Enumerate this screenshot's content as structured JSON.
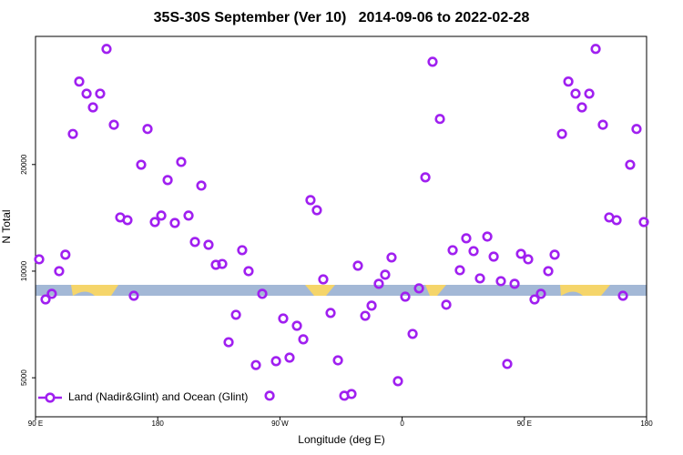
{
  "chart_data": {
    "type": "scatter",
    "title": "35S-30S September (Ver 10)   2014-09-06 to 2022-02-28",
    "x_label": "Longitude (deg E)",
    "y_label": "N Total",
    "log_y": true,
    "legend_position": "lower-left",
    "xlim": [
      90,
      540
    ],
    "ylim": [
      3880,
      46000
    ],
    "xticks": [
      {
        "value": 90,
        "label": "90 E"
      },
      180,
      {
        "value": 270,
        "label": "90 W"
      },
      {
        "value": 360,
        "label": "0"
      },
      {
        "value": 450,
        "label": "90 E"
      },
      {
        "value": 540,
        "label": "180"
      }
    ],
    "yticks": [
      5000,
      10000,
      20000
    ],
    "series": [
      {
        "name": "Land (Nadir&Glint) and Ocean (Glint)",
        "color": "#a020f0",
        "x": [
          92.7,
          97.4,
          102,
          107.4,
          112,
          117.5,
          122.2,
          127.6,
          132.3,
          137.6,
          142.3,
          147.7,
          152.4,
          157.7,
          162.4,
          167.8,
          172.5,
          177.9,
          182.6,
          187.3,
          192.6,
          197.3,
          202.7,
          207.4,
          212.1,
          217.4,
          222.8,
          227.5,
          232.2,
          237.6,
          242.2,
          246.9,
          252.3,
          257,
          262.4,
          267.1,
          272.4,
          277.1,
          282.5,
          287.2,
          292.5,
          297.2,
          301.9,
          307.3,
          312.7,
          317.4,
          322.7,
          327.4,
          332.8,
          337.5,
          342.8,
          347.5,
          352.2,
          356.9,
          362.3,
          367.7,
          372.4,
          377.1,
          382.4,
          387.8,
          392.5,
          397.2,
          402.5,
          407.2,
          412.6,
          417.3,
          422.7,
          427.4,
          432.7,
          437.4,
          442.8,
          447.5,
          452.8,
          457.5,
          462.2,
          467.6,
          472.3,
          477.7,
          482.4,
          487.7,
          492.4,
          497.8,
          502.5,
          507.8,
          512.5,
          517.9,
          522.6,
          527.9,
          532.6,
          538
        ],
        "values": [
          10800,
          8320,
          8630,
          10000,
          11130,
          24400,
          34300,
          31700,
          29000,
          31700,
          42400,
          25900,
          14180,
          13930,
          8520,
          19970,
          25200,
          13760,
          14350,
          18080,
          13680,
          20340,
          14350,
          12090,
          17440,
          11870,
          10420,
          10480,
          6300,
          7530,
          11460,
          10000,
          5430,
          8630,
          4450,
          5570,
          7350,
          5700,
          7010,
          6420,
          15870,
          14860,
          9480,
          7620,
          5600,
          4450,
          4500,
          10360,
          7480,
          7990,
          9210,
          9770,
          10930,
          4890,
          8470,
          6650,
          8940,
          18400,
          39000,
          26900,
          8040,
          11460,
          10060,
          12380,
          11390,
          9540,
          12520,
          10990,
          9370,
          5470,
          9210,
          11190,
          10800,
          8320,
          8630,
          10000,
          11130,
          24400,
          34300,
          31700,
          29000,
          31700,
          42400,
          25900,
          14180,
          13930,
          8520,
          19970,
          25200,
          13760
        ]
      }
    ]
  }
}
